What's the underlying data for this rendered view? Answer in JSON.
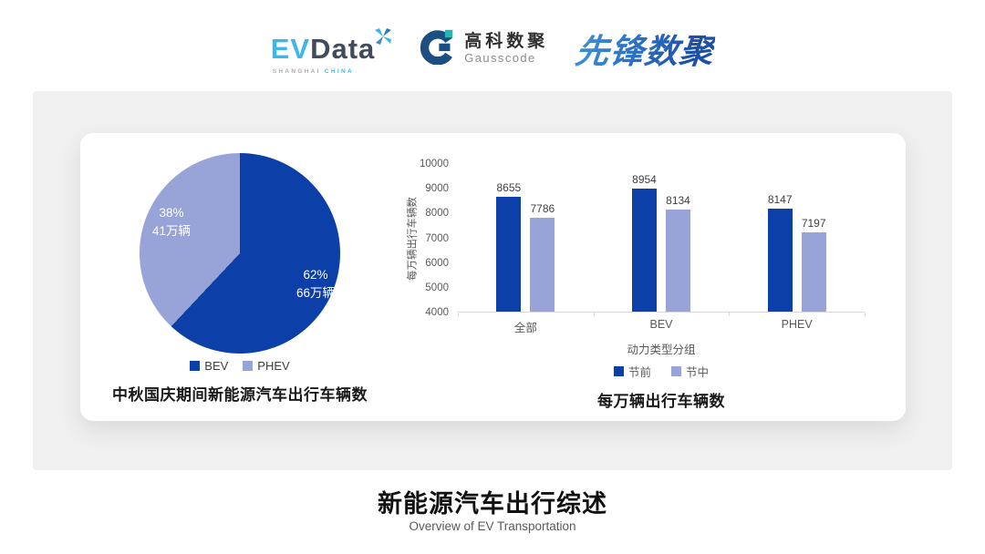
{
  "header": {
    "evdata_logo": {
      "ev": "EV",
      "data": "Data",
      "sub_left": "SHANGHAI",
      "sub_right": "CHINA"
    },
    "gausscode_logo": {
      "cn": "高科数聚",
      "en": "Gausscode"
    },
    "pioneer_logo": {
      "text": "先锋数聚"
    }
  },
  "colors": {
    "series_dark_blue": "#0D3FA8",
    "series_light_purple": "#98A3D8",
    "panel_gray": "#F0F0F1",
    "axis_line": "#D9D9D9",
    "axis_text": "#595959",
    "evdata_blue": "#3DB7E9",
    "evdata_dark": "#414B5C",
    "gausscode_blue": "#1D4E82",
    "gausscode_teal": "#26B7B0"
  },
  "chart_data": [
    {
      "type": "pie",
      "title": "中秋国庆期间新能源汽车出行车辆数",
      "start_angle_deg": 0,
      "direction": "clockwise",
      "slices": [
        {
          "label": "BEV",
          "percent": 62,
          "value_label": "66万辆",
          "color": "#0D3FA8"
        },
        {
          "label": "PHEV",
          "percent": 38,
          "value_label": "41万辆",
          "color": "#98A3D8"
        }
      ],
      "legend_position": "bottom"
    },
    {
      "type": "bar",
      "title": "每万辆出行车辆数",
      "categories": [
        "全部",
        "BEV",
        "PHEV"
      ],
      "series": [
        {
          "name": "节前",
          "color": "#0D3FA8",
          "values": [
            8655,
            8954,
            8147
          ]
        },
        {
          "name": "节中",
          "color": "#98A3D8",
          "values": [
            7786,
            8134,
            7197
          ]
        }
      ],
      "xlabel": "动力类型分组",
      "ylabel": "每万辆出行车辆数",
      "ylim": [
        4000,
        10000
      ],
      "yticks": [
        4000,
        5000,
        6000,
        7000,
        8000,
        9000,
        10000
      ],
      "grid": false,
      "legend_position": "bottom"
    }
  ],
  "footer": {
    "title": "新能源汽车出行综述",
    "subtitle": "Overview of EV Transportation"
  }
}
